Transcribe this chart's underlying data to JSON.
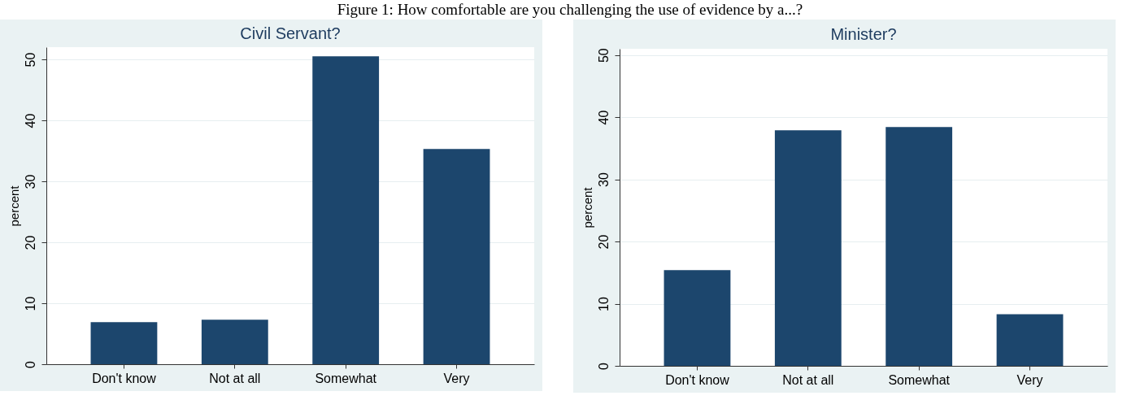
{
  "chart_data": [
    {
      "type": "bar",
      "title": "Civil Servant?",
      "ylabel": "percent",
      "annotations": [
        "Figure 1: How comfortable are you challenging the use of evidence by a...?"
      ],
      "categories": [
        "Don't know",
        "Not at all",
        "Somewhat",
        "Very"
      ],
      "values": [
        6.9,
        7.3,
        50.5,
        35.3
      ],
      "color": "#1c466d",
      "ylim": [
        0,
        52
      ],
      "yticks": [
        0,
        10,
        20,
        30,
        40,
        50
      ],
      "grid": "y"
    },
    {
      "type": "bar",
      "title": "Minister?",
      "ylabel": "percent",
      "categories": [
        "Don't know",
        "Not at all",
        "Somewhat",
        "Very"
      ],
      "values": [
        15.4,
        37.9,
        38.4,
        8.3
      ],
      "color": "#1c466d",
      "ylim": [
        0,
        51
      ],
      "yticks": [
        0,
        10,
        20,
        30,
        40,
        50
      ],
      "grid": "y"
    }
  ]
}
